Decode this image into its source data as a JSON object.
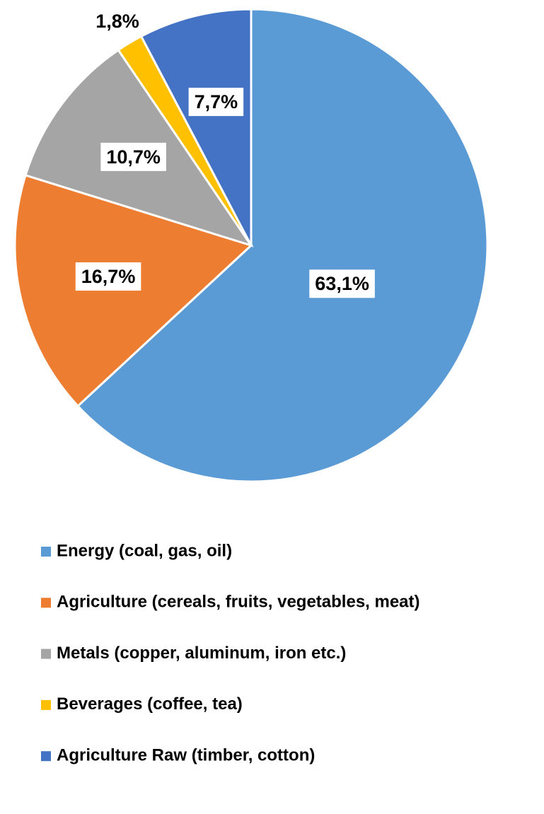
{
  "chart_data": {
    "type": "pie",
    "categories": [
      "Energy (coal, gas, oil)",
      "Agriculture (cereals, fruits, vegetables, meat)",
      "Metals (copper, aluminum, iron etc.)",
      "Beverages (coffee, tea)",
      "Agriculture Raw (timber, cotton)"
    ],
    "values": [
      63.1,
      16.7,
      10.7,
      1.8,
      7.7
    ],
    "value_labels": [
      "63,1%",
      "16,7%",
      "10,7%",
      "1,8%",
      "7,7%"
    ],
    "colors": [
      "#5b9bd5",
      "#ed7d31",
      "#a5a5a5",
      "#ffc000",
      "#4472c4"
    ],
    "legend": "bottom"
  }
}
